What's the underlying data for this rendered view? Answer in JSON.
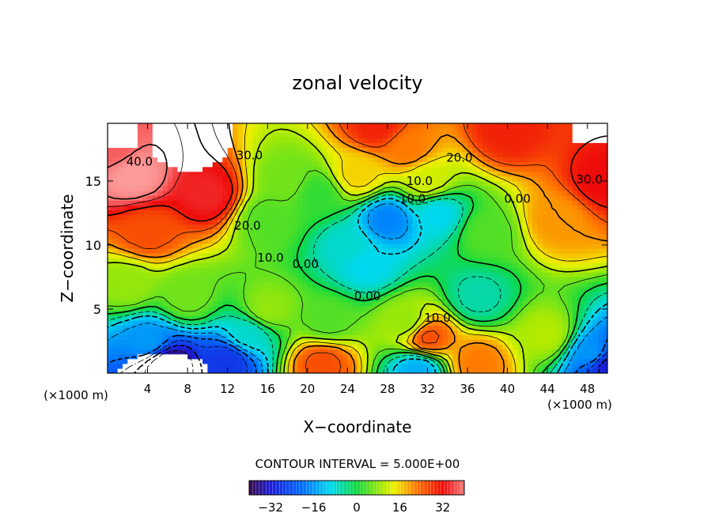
{
  "chart_data": {
    "type": "heatmap",
    "title": "zonal velocity",
    "xlabel": "X−coordinate",
    "ylabel": "Z−coordinate",
    "x_unit": "(×1000 m)",
    "x_unit_right": "(×1000 m)",
    "xlim": [
      0,
      50
    ],
    "ylim": [
      0,
      19.5
    ],
    "x_ticks": [
      "4",
      "8",
      "12",
      "16",
      "20",
      "24",
      "28",
      "32",
      "36",
      "40",
      "44",
      "48"
    ],
    "y_ticks": [
      "5",
      "10",
      "15"
    ],
    "contour_interval_text": "CONTOUR INTERVAL = 5.000E+00",
    "colorbar": {
      "min": -40,
      "max": 40,
      "ticks": [
        "−32",
        "−16",
        "0",
        "16",
        "32"
      ]
    },
    "contour_labels": [
      {
        "text": "40.0",
        "x": 3.2,
        "z": 16.2
      },
      {
        "text": "30.0",
        "x": 14.2,
        "z": 16.7
      },
      {
        "text": "20.0",
        "x": 14.0,
        "z": 11.2
      },
      {
        "text": "10.0",
        "x": 16.3,
        "z": 8.7
      },
      {
        "text": "0.00",
        "x": 19.8,
        "z": 8.2
      },
      {
        "text": "0.00",
        "x": 26.0,
        "z": 5.7
      },
      {
        "text": "10.0",
        "x": 33.0,
        "z": 4.0
      },
      {
        "text": "10.0",
        "x": 31.2,
        "z": 14.7
      },
      {
        "text": "20.0",
        "x": 35.2,
        "z": 16.5
      },
      {
        "text": "10.0",
        "x": 30.5,
        "z": 13.3
      },
      {
        "text": "0.00",
        "x": 41.0,
        "z": 13.3
      },
      {
        "text": "30.0",
        "x": 48.2,
        "z": 14.8
      }
    ],
    "features": [
      {
        "x": 2.5,
        "z": 15.5,
        "value": 44
      },
      {
        "x": 10.0,
        "z": 14.0,
        "value": 34
      },
      {
        "x": 4.0,
        "z": 11.0,
        "value": 26
      },
      {
        "x": 0.5,
        "z": 17.5,
        "value": 38
      },
      {
        "x": 27.0,
        "z": 19.3,
        "value": 30
      },
      {
        "x": 40.0,
        "z": 19.0,
        "value": 30
      },
      {
        "x": 49.5,
        "z": 15.0,
        "value": 32
      },
      {
        "x": 45.0,
        "z": 12.0,
        "value": 20
      },
      {
        "x": 2.0,
        "z": 7.0,
        "value": 8
      },
      {
        "x": 8.0,
        "z": 6.0,
        "value": 6
      },
      {
        "x": 4.0,
        "z": 2.5,
        "value": -16
      },
      {
        "x": 6.0,
        "z": 0.6,
        "value": -40
      },
      {
        "x": 12.0,
        "z": 1.0,
        "value": -28
      },
      {
        "x": 14.0,
        "z": 3.0,
        "value": -8
      },
      {
        "x": 16.0,
        "z": 12.0,
        "value": 4
      },
      {
        "x": 18.0,
        "z": 15.0,
        "value": 6
      },
      {
        "x": 21.0,
        "z": 14.0,
        "value": 2
      },
      {
        "x": 28.0,
        "z": 12.0,
        "value": -18
      },
      {
        "x": 26.0,
        "z": 8.5,
        "value": -10
      },
      {
        "x": 33.0,
        "z": 12.5,
        "value": -10
      },
      {
        "x": 24.0,
        "z": 10.0,
        "value": -8
      },
      {
        "x": 37.0,
        "z": 6.0,
        "value": -6
      },
      {
        "x": 30.0,
        "z": 4.0,
        "value": 8
      },
      {
        "x": 22.0,
        "z": 4.0,
        "value": 4
      },
      {
        "x": 21.5,
        "z": 0.8,
        "value": 26
      },
      {
        "x": 32.0,
        "z": 2.8,
        "value": 26
      },
      {
        "x": 37.0,
        "z": 0.8,
        "value": 22
      },
      {
        "x": 31.0,
        "z": 0.3,
        "value": -14
      },
      {
        "x": 44.0,
        "z": 3.0,
        "value": 10
      },
      {
        "x": 48.5,
        "z": 1.5,
        "value": -16
      },
      {
        "x": 49.8,
        "z": 0.7,
        "value": -32
      },
      {
        "x": 25.0,
        "z": 15.5,
        "value": 16
      },
      {
        "x": 32.0,
        "z": 15.0,
        "value": 12
      },
      {
        "x": 38.0,
        "z": 11.0,
        "value": 4
      },
      {
        "x": 16.0,
        "z": 5.0,
        "value": 8
      },
      {
        "x": 30.0,
        "z": 17.5,
        "value": 22
      }
    ]
  }
}
